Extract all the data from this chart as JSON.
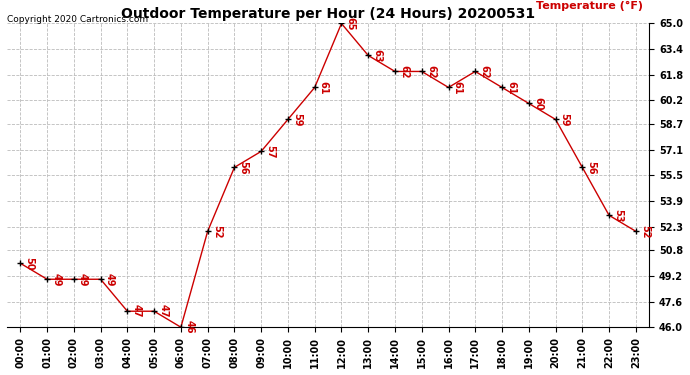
{
  "title": "Outdoor Temperature per Hour (24 Hours) 20200531",
  "copyright": "Copyright 2020 Cartronics.com",
  "legend_label": "Temperature (°F)",
  "hours": [
    "00:00",
    "01:00",
    "02:00",
    "03:00",
    "04:00",
    "05:00",
    "06:00",
    "07:00",
    "08:00",
    "09:00",
    "10:00",
    "11:00",
    "12:00",
    "13:00",
    "14:00",
    "15:00",
    "16:00",
    "17:00",
    "18:00",
    "19:00",
    "20:00",
    "21:00",
    "22:00",
    "23:00"
  ],
  "temps": [
    50,
    49,
    49,
    49,
    47,
    47,
    46,
    52,
    56,
    57,
    59,
    61,
    65,
    63,
    62,
    62,
    61,
    62,
    61,
    60,
    59,
    56,
    53,
    52
  ],
  "line_color": "#cc0000",
  "marker_color": "#000000",
  "grid_color": "#bbbbbb",
  "background_color": "#ffffff",
  "ylim": [
    46.0,
    65.0
  ],
  "yticks": [
    46.0,
    47.6,
    49.2,
    50.8,
    52.3,
    53.9,
    55.5,
    57.1,
    58.7,
    60.2,
    61.8,
    63.4,
    65.0
  ],
  "title_fontsize": 10,
  "tick_fontsize": 7,
  "annot_fontsize": 7,
  "copyright_fontsize": 6.5,
  "legend_fontsize": 8
}
